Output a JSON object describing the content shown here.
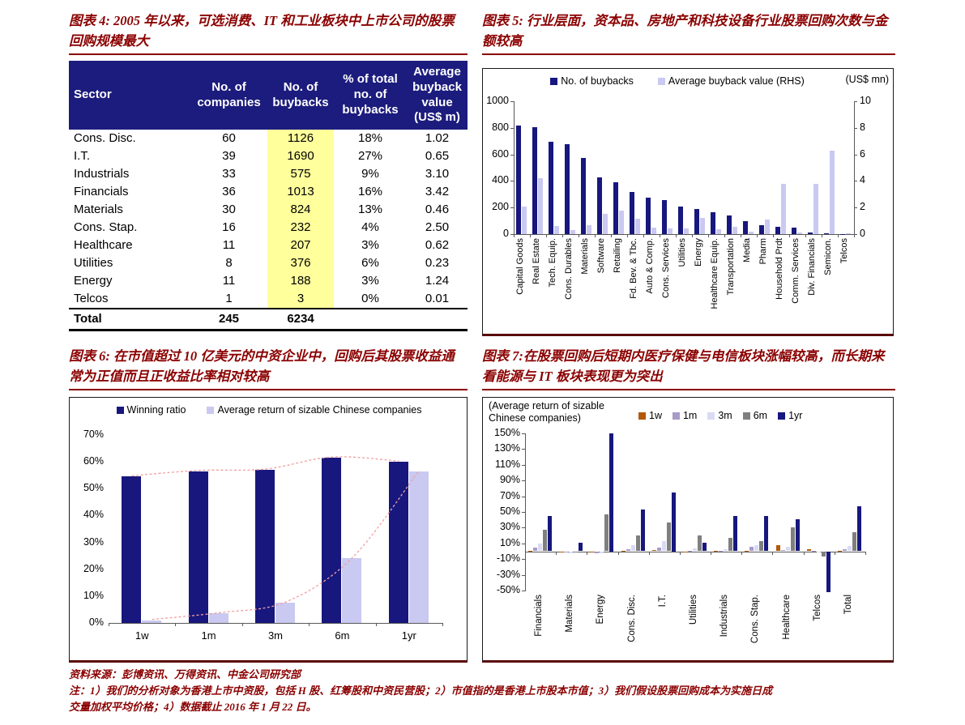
{
  "figures": {
    "fig4": {
      "title": "图表 4: 2005 年以来，可选消费、IT 和工业板块中上市公司的股票回购规模最大",
      "table": {
        "headers": [
          "Sector",
          "No. of companies",
          "No. of buybacks",
          "% of total no. of buybacks",
          "Average buyback value (US$ m)"
        ],
        "rows": [
          [
            "Cons. Disc.",
            "60",
            "1126",
            "18%",
            "1.02"
          ],
          [
            "I.T.",
            "39",
            "1690",
            "27%",
            "0.65"
          ],
          [
            "Industrials",
            "33",
            "575",
            "9%",
            "3.10"
          ],
          [
            "Financials",
            "36",
            "1013",
            "16%",
            "3.42"
          ],
          [
            "Materials",
            "30",
            "824",
            "13%",
            "0.46"
          ],
          [
            "Cons. Stap.",
            "16",
            "232",
            "4%",
            "2.50"
          ],
          [
            "Healthcare",
            "11",
            "207",
            "3%",
            "0.62"
          ],
          [
            "Utilities",
            "8",
            "376",
            "6%",
            "0.23"
          ],
          [
            "Energy",
            "11",
            "188",
            "3%",
            "1.24"
          ],
          [
            "Telcos",
            "1",
            "3",
            "0%",
            "0.01"
          ]
        ],
        "total_row": [
          "Total",
          "245",
          "6234",
          "",
          ""
        ]
      }
    },
    "fig5": {
      "title": "图表 5: 行业层面，资本品、房地产和科技设备行业股票回购次数与金额较高",
      "unit_label": "(US$ mn)"
    },
    "fig6": {
      "title": "图表 6: 在市值超过 10 亿美元的中资企业中，回购后其股票收益通常为正值而且正收益比率相对较高"
    },
    "fig7": {
      "title": "图表 7:在股票回购后短期内医疗保健与电信板块涨幅较高，而长期来看能源与 IT 板块表现更为突出",
      "note_label": "(Average return of sizable Chinese companies)"
    }
  },
  "chart_data": [
    {
      "type": "bar",
      "title": "行业回购次数与平均回购金额",
      "categories": [
        "Capital Goods",
        "Real Estate",
        "Tech. Equip.",
        "Cons. Durables",
        "Materials",
        "Software",
        "Retailing",
        "Fd. Bev. & Tbc.",
        "Auto & Comp.",
        "Cons. Services",
        "Utilities",
        "Energy",
        "Healthcare Equip.",
        "Transportation",
        "Media",
        "Pharm",
        "Household Prdt",
        "Comm. Services",
        "Div. Financials",
        "Semicon.",
        "Telcos"
      ],
      "series": [
        {
          "name": "No. of buybacks",
          "axis": "left",
          "color_key": "navy",
          "values": [
            820,
            805,
            695,
            675,
            575,
            425,
            390,
            320,
            275,
            255,
            205,
            190,
            165,
            140,
            100,
            70,
            55,
            50,
            15,
            5,
            3
          ]
        },
        {
          "name": "Average buyback value (RHS)",
          "axis": "right",
          "color_key": "lavender",
          "values": [
            2.1,
            4.2,
            0.6,
            0.3,
            0.65,
            1.5,
            1.75,
            1.15,
            0.5,
            0.4,
            0.45,
            1.25,
            0.35,
            0.55,
            0.2,
            1.1,
            3.8,
            0.1,
            3.8,
            6.3,
            0.05
          ]
        }
      ],
      "left_axis": {
        "min": 0,
        "max": 1000,
        "ticks": [
          0,
          200,
          400,
          600,
          800,
          1000
        ]
      },
      "right_axis": {
        "min": 0,
        "max": 10,
        "ticks": [
          0,
          2,
          4,
          6,
          8,
          10
        ]
      },
      "unit_label": "(US$ mn)",
      "legend_position": "top",
      "grid": false
    },
    {
      "type": "bar",
      "title": "回购后胜率与平均收益",
      "categories": [
        "1w",
        "1m",
        "3m",
        "6m",
        "1yr"
      ],
      "series": [
        {
          "name": "Winning ratio",
          "color_key": "navy",
          "values": [
            54.5,
            56.5,
            57,
            61.5,
            60
          ]
        },
        {
          "name": "Average return of sizable Chinese companies",
          "color_key": "lavender",
          "values": [
            1,
            3.5,
            7.5,
            24,
            56.5
          ]
        }
      ],
      "y_axis": {
        "min": 0,
        "max": 70,
        "ticks": [
          0,
          10,
          20,
          30,
          40,
          50,
          60,
          70
        ],
        "format": "percent"
      },
      "trend_lines": [
        {
          "series": 0
        },
        {
          "series": 1
        }
      ],
      "legend_position": "top",
      "grid": false
    },
    {
      "type": "bar",
      "title": "回购后各板块平均收益",
      "categories": [
        "Financials",
        "Materials",
        "Energy",
        "Cons. Disc.",
        "I.T.",
        "Utilities",
        "Industrials",
        "Cons. Stap.",
        "Healthcare",
        "Telcos",
        "Total"
      ],
      "series": [
        {
          "name": "1w",
          "color_key": "brown_1w",
          "values": [
            1,
            -1,
            -1,
            1,
            2,
            -1,
            1,
            1,
            8,
            3,
            1
          ]
        },
        {
          "name": "1m",
          "color_key": "purple_1m",
          "values": [
            5,
            -2,
            -3,
            3,
            5,
            1,
            1,
            6,
            2,
            1,
            3
          ]
        },
        {
          "name": "3m",
          "color_key": "lav_3m",
          "values": [
            10,
            -3,
            -3,
            8,
            13,
            4,
            3,
            8,
            6,
            -2,
            7
          ]
        },
        {
          "name": "6m",
          "color_key": "gray_6m",
          "values": [
            27,
            -2,
            47,
            20,
            37,
            20,
            17,
            13,
            30,
            -7,
            24
          ]
        },
        {
          "name": "1yr",
          "color_key": "navy",
          "values": [
            45,
            11,
            150,
            53,
            75,
            11,
            45,
            45,
            41,
            -52,
            57
          ]
        }
      ],
      "y_axis": {
        "min": -50,
        "max": 150,
        "ticks": [
          150,
          130,
          110,
          90,
          70,
          50,
          30,
          10,
          -10,
          -30,
          -50
        ],
        "format": "percent"
      },
      "note_label": "(Average return of sizable Chinese companies)",
      "legend_position": "top",
      "grid": false
    }
  ],
  "footer": {
    "source": "资料来源：彭博资讯、万得资讯、中金公司研究部",
    "note_line1": "注：1）我们的分析对象为香港上市中资股，包括 H 股、红筹股和中资民营股；2）市值指的是香港上市股本市值；3）我们假设股票回购成本为实施日成",
    "note_line2": "交量加权平均价格；4）数据截止 2016 年 1 月 22 日。"
  },
  "colors": {
    "navy": "#17177E",
    "lavender": "#C9C9F1",
    "maroon": "#8B0000",
    "table_header_bg": "#1C1C7E",
    "highlight_yellow": "#FFFF9C",
    "brown_1w": "#B25909",
    "purple_1m": "#A79BC7",
    "lav_3m": "#DADAF5",
    "gray_6m": "#7F7F7F",
    "trend_pink": "#F2A0A0"
  }
}
